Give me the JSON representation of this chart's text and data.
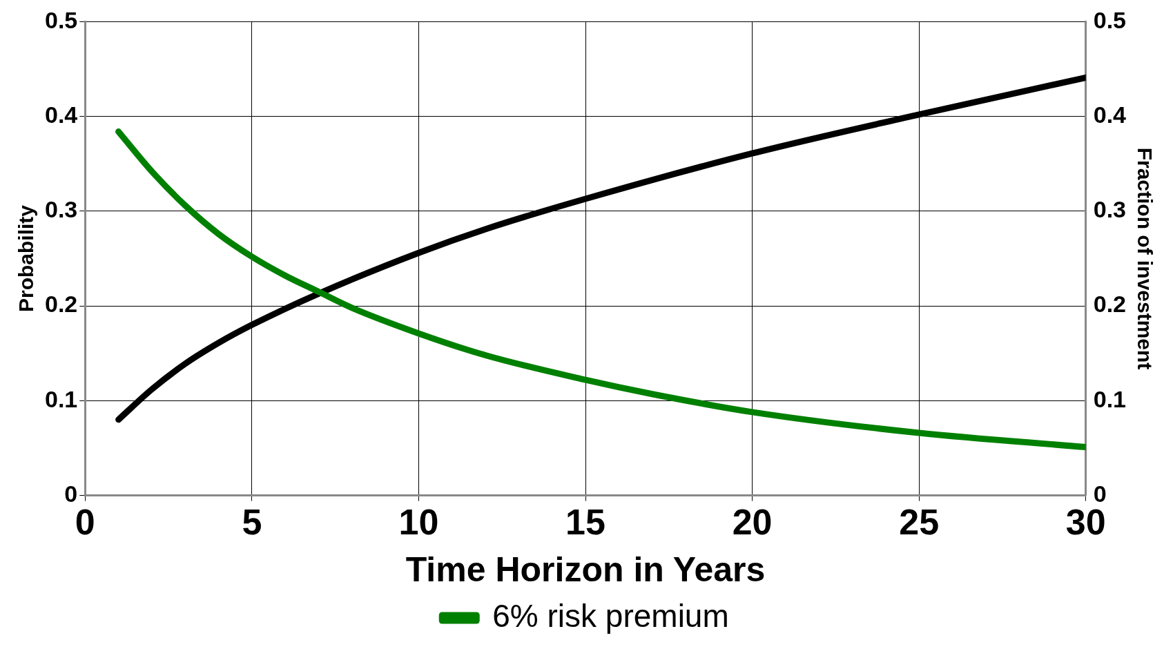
{
  "chart_data": {
    "type": "line",
    "xlabel": "Time Horizon in Years",
    "ylabel": "Probability",
    "y2label": "Fraction of investment",
    "xlim": [
      0,
      30
    ],
    "xticks": [
      0,
      5,
      10,
      15,
      20,
      25,
      30
    ],
    "ylim": [
      0,
      0.5
    ],
    "yticks": [
      0,
      0.1,
      0.2,
      0.3,
      0.4,
      0.5
    ],
    "y2lim": [
      0,
      0.5
    ],
    "y2ticks": [
      0,
      0.1,
      0.2,
      0.3,
      0.4,
      0.5
    ],
    "grid": true,
    "legend": "bottom",
    "marker": "none",
    "line_style": "solid",
    "series": [
      {
        "name": "6% risk premium",
        "color": "#008000",
        "x": [
          1,
          2,
          3,
          4,
          5,
          6,
          7,
          8,
          10,
          12,
          15,
          17,
          20,
          25,
          30
        ],
        "values": [
          0.384,
          0.342,
          0.306,
          0.276,
          0.252,
          0.232,
          0.215,
          0.198,
          0.171,
          0.148,
          0.122,
          0.107,
          0.088,
          0.066,
          0.051
        ]
      },
      {
        "color": "#000000",
        "axis": "y2",
        "x": [
          1,
          2,
          3,
          4,
          5,
          7,
          10,
          12,
          15,
          20,
          25,
          30
        ],
        "values": [
          0.08,
          0.112,
          0.139,
          0.161,
          0.18,
          0.213,
          0.256,
          0.281,
          0.313,
          0.361,
          0.402,
          0.441
        ]
      }
    ]
  }
}
